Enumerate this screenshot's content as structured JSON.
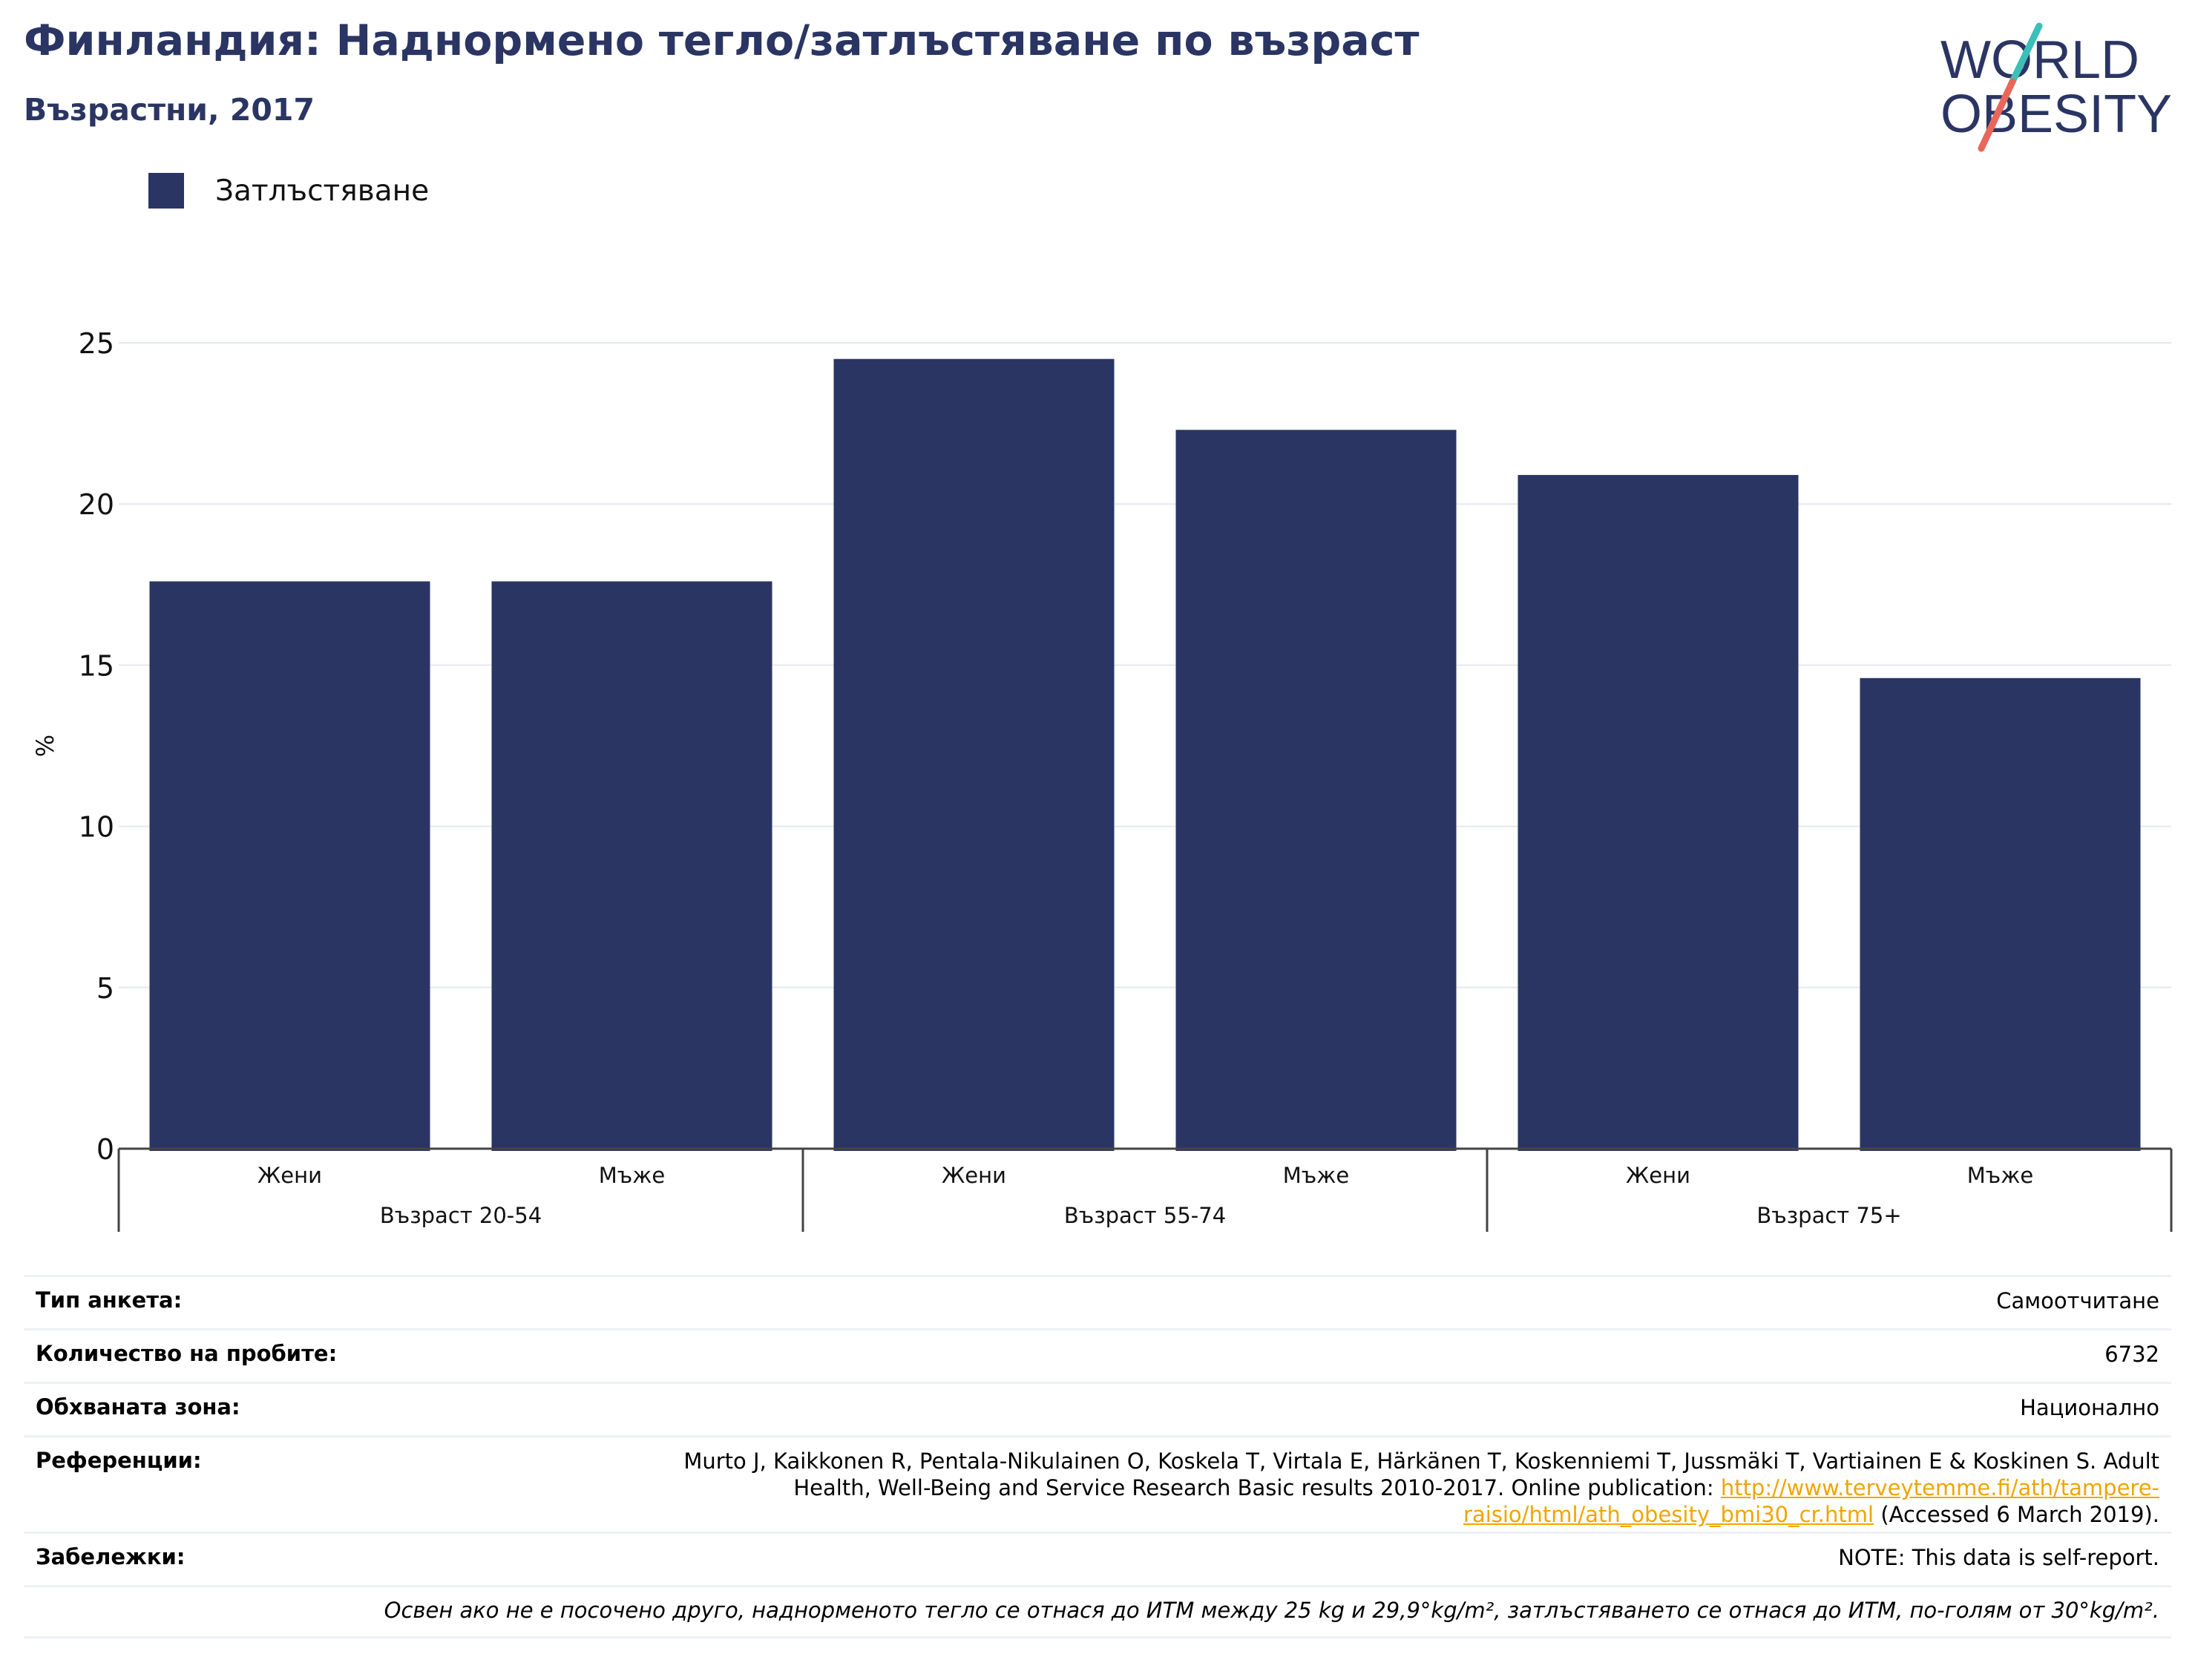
{
  "header": {
    "title": "Финландия: Наднормено тегло/затлъстяване по възраст",
    "subtitle": "Възрастни, 2017"
  },
  "logo": {
    "line1": "WORLD",
    "line2": "OBESITY"
  },
  "legend": {
    "label": "Затлъстяване"
  },
  "colors": {
    "bar": "#2a3563",
    "title": "#2a3563",
    "grid": "#e6e8f0",
    "link": "#f0a500",
    "logo_teal": "#3bbfb8",
    "logo_coral": "#e8675a"
  },
  "chart_data": {
    "type": "bar",
    "ylabel": "%",
    "ylim": [
      0,
      25
    ],
    "yticks": [
      0,
      5,
      10,
      15,
      20,
      25
    ],
    "grid": true,
    "legend_position": "top-left",
    "groups": [
      {
        "label": "Възраст 20-54",
        "categories": [
          "Жени",
          "Мъже"
        ],
        "values": [
          17.6,
          17.6
        ]
      },
      {
        "label": "Възраст 55-74",
        "categories": [
          "Жени",
          "Мъже"
        ],
        "values": [
          24.5,
          22.3
        ]
      },
      {
        "label": "Възраст 75+",
        "categories": [
          "Жени",
          "Мъже"
        ],
        "values": [
          20.9,
          14.6
        ]
      }
    ],
    "series": [
      {
        "name": "Затлъстяване",
        "values": [
          17.6,
          17.6,
          24.5,
          22.3,
          20.9,
          14.6
        ]
      }
    ]
  },
  "info": {
    "survey_type": {
      "key": "Тип анкета:",
      "value": "Самоотчитане"
    },
    "sample_size": {
      "key": "Количество на пробите:",
      "value": "6732"
    },
    "area": {
      "key": "Обхваната зона:",
      "value": "Национално"
    },
    "references": {
      "key": "Референции:",
      "text": "Murto J, Kaikkonen R, Pentala-Nikulainen O, Koskela T, Virtala E, Härkänen T, Koskenniemi T, Jussmäki T, Vartiainen E & Koskinen S. Adult Health, Well-Being and Service Research Basic results 2010-2017. Online publication:",
      "link": "http://www.terveytemme.fi/ath/tampere-raisio/html/ath_obesity_bmi30_cr.html",
      "suffix": "(Accessed 6 March 2019)."
    },
    "notes": {
      "key": "Забележки:",
      "value": "NOTE: This data is self-report."
    },
    "footnote": "Освен ако не е посочено друго, наднорменото тегло се отнася до ИТМ между 25 kg и 29,9°kg/m², затлъстяването се отнася до ИТМ, по-голям от 30°kg/m²."
  }
}
